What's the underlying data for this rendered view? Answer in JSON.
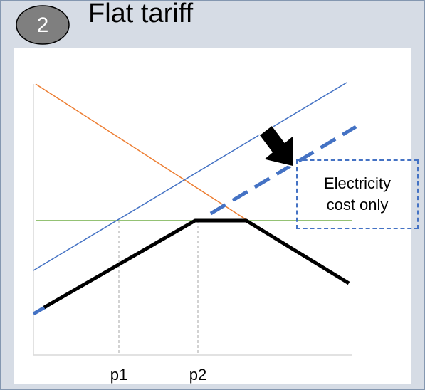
{
  "header": {
    "badge_number": "2",
    "title": "Flat tariff"
  },
  "callout": {
    "text": "Electricity cost only"
  },
  "x_ticks": [
    "p1",
    "p2"
  ],
  "colors": {
    "panel_background": "#d6dce5",
    "badge_fill": "#7f7f7f",
    "cost_line": "#4472c4",
    "demand_line": "#ed7d31",
    "price_line": "#70ad47",
    "profit_curve": "#000000"
  }
}
